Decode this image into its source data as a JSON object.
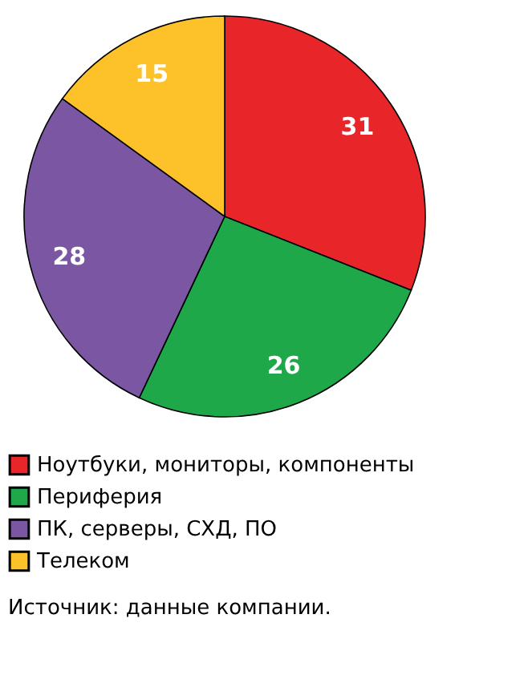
{
  "chart_data": {
    "type": "pie",
    "categories": [
      "Ноутбуки, мониторы, компоненты",
      "Периферия",
      "ПК, серверы, СХД, ПО",
      "Телеком"
    ],
    "values": [
      31,
      26,
      28,
      15
    ],
    "colors": [
      "#e8262a",
      "#1fa84a",
      "#7b56a3",
      "#fdc229"
    ],
    "data_labels": true,
    "legend": "bottom",
    "annotations": [
      "Источник: данные компании."
    ]
  }
}
